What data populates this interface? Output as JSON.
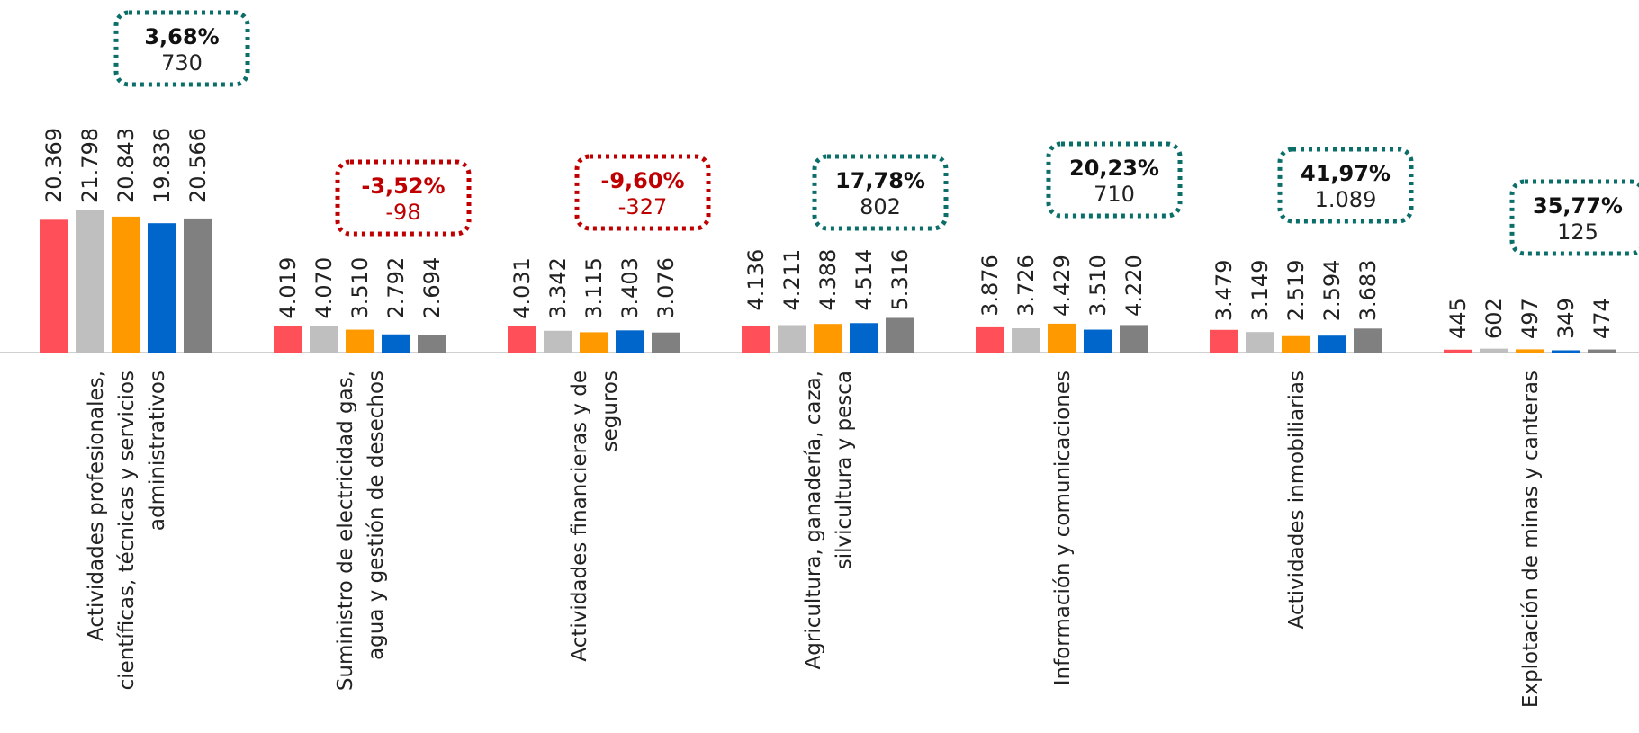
{
  "chart_data": {
    "type": "bar",
    "title": "",
    "xlabel": "",
    "ylabel": "",
    "ylim": [
      0,
      24000
    ],
    "grid": false,
    "legend": "none",
    "series_colors": [
      "#ff4f58",
      "#bfbfbf",
      "#ff9900",
      "#0066cc",
      "#808080"
    ],
    "categories": [
      {
        "label_lines": [
          "Actividades profesionales,",
          "científicas, técnicas y servicios",
          "administrativos"
        ],
        "values": [
          20369,
          21798,
          20843,
          19836,
          20566
        ],
        "value_labels": [
          "20.369",
          "21.798",
          "20.843",
          "19.836",
          "20.566"
        ],
        "change_pct": "3,68%",
        "change_abs": "730",
        "trend": "up"
      },
      {
        "label_lines": [
          "Suministro de electricidad gas,",
          "agua y gestión de desechos"
        ],
        "values": [
          4019,
          4070,
          3510,
          2792,
          2694
        ],
        "value_labels": [
          "4.019",
          "4.070",
          "3.510",
          "2.792",
          "2.694"
        ],
        "change_pct": "-3,52%",
        "change_abs": "-98",
        "trend": "down"
      },
      {
        "label_lines": [
          "Actividades financieras y de",
          "seguros"
        ],
        "values": [
          4031,
          3342,
          3115,
          3403,
          3076
        ],
        "value_labels": [
          "4.031",
          "3.342",
          "3.115",
          "3.403",
          "3.076"
        ],
        "change_pct": "-9,60%",
        "change_abs": "-327",
        "trend": "down"
      },
      {
        "label_lines": [
          "Agricultura, ganadería, caza,",
          "silvicultura y pesca"
        ],
        "values": [
          4136,
          4211,
          4388,
          4514,
          5316
        ],
        "value_labels": [
          "4.136",
          "4.211",
          "4.388",
          "4.514",
          "5.316"
        ],
        "change_pct": "17,78%",
        "change_abs": "802",
        "trend": "up"
      },
      {
        "label_lines": [
          "Información y comunicaciones"
        ],
        "values": [
          3876,
          3726,
          4429,
          3510,
          4220
        ],
        "value_labels": [
          "3.876",
          "3.726",
          "4.429",
          "3.510",
          "4.220"
        ],
        "change_pct": "20,23%",
        "change_abs": "710",
        "trend": "up"
      },
      {
        "label_lines": [
          "Actividades inmobiliarias"
        ],
        "values": [
          3479,
          3149,
          2519,
          2594,
          3683
        ],
        "value_labels": [
          "3.479",
          "3.149",
          "2.519",
          "2.594",
          "3.683"
        ],
        "change_pct": "41,97%",
        "change_abs": "1.089",
        "trend": "up"
      },
      {
        "label_lines": [
          "Explotación de minas y canteras"
        ],
        "values": [
          445,
          602,
          497,
          349,
          474
        ],
        "value_labels": [
          "445",
          "602",
          "497",
          "349",
          "474"
        ],
        "change_pct": "35,77%",
        "change_abs": "125",
        "trend": "up"
      }
    ],
    "trend_colors": {
      "up": "#0b6e69",
      "down": "#c00000"
    }
  }
}
